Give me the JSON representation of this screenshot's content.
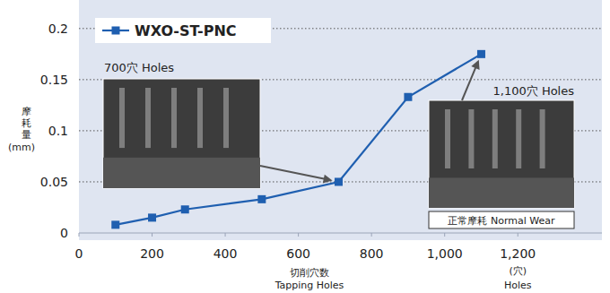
{
  "chart_data": {
    "type": "line",
    "x_label": [
      "切削穴数",
      "Tapping Holes"
    ],
    "x_unit": [
      "(穴)",
      "Holes"
    ],
    "y_label": [
      "摩耗量",
      "(mm)"
    ],
    "x": [
      100,
      200,
      290,
      500,
      710,
      900,
      1100
    ],
    "series": [
      {
        "name": "WXO-ST-PNC",
        "color": "#1f5fb0",
        "marker": "square",
        "values": [
          0.008,
          0.015,
          0.023,
          0.033,
          0.05,
          0.133,
          0.175
        ]
      }
    ],
    "xlim": [
      0,
      1430
    ],
    "xticks": [
      0,
      200,
      400,
      600,
      800,
      {
        "value": 1000,
        "label": "1,000"
      },
      {
        "value": 1200,
        "label": "1,200"
      }
    ],
    "ylim": [
      0,
      0.22
    ],
    "yticks": [
      0,
      0.05,
      0.1,
      0.15,
      0.2
    ],
    "grid": true,
    "legend": "upper left",
    "annotations": [
      "700穴 Holes",
      "1,100穴 Holes",
      "正常摩耗 Normal Wear"
    ]
  }
}
